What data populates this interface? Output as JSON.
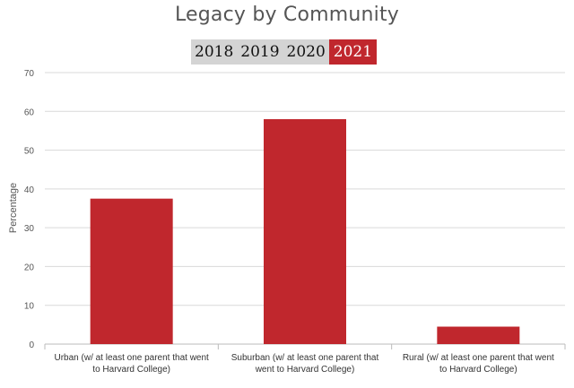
{
  "title": "Legacy by Community",
  "year_tabs": [
    {
      "label": "2018",
      "active": false
    },
    {
      "label": "2019",
      "active": false
    },
    {
      "label": "2020",
      "active": false
    },
    {
      "label": "2021",
      "active": true
    }
  ],
  "colors": {
    "bar": "#c0272d",
    "grid": "#d9d9d9",
    "axis": "#bbbbbb",
    "tab_bg": "#d4d4d4",
    "tab_active": "#c0272d"
  },
  "chart_data": {
    "type": "bar",
    "categories": [
      [
        "Urban (w/ at least one parent that went",
        "to Harvard College)"
      ],
      [
        "Suburban (w/ at least one parent that",
        "went to Harvard College)"
      ],
      [
        "Rural (w/ at least one parent that went",
        "to Harvard College)"
      ]
    ],
    "values": [
      37.5,
      58,
      4.5
    ],
    "ylabel": "Percentage",
    "ylim": [
      0,
      70
    ],
    "yticks": [
      0,
      10,
      20,
      30,
      40,
      50,
      60,
      70
    ],
    "grid": true
  }
}
